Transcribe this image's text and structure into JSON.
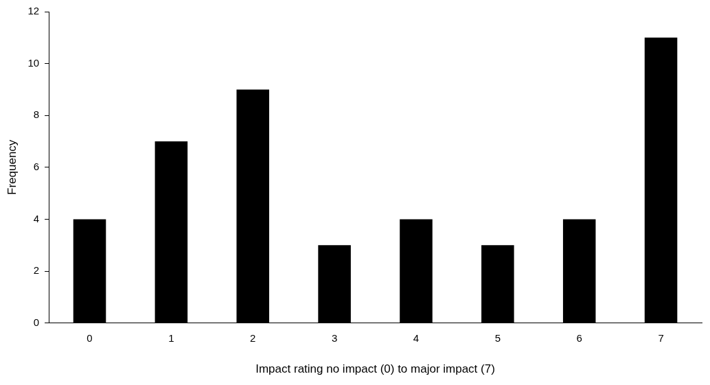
{
  "chart_data": {
    "type": "bar",
    "xlabel": "Impact rating no impact (0) to major impact (7)",
    "ylabel": "Frequency",
    "categories": [
      "0",
      "1",
      "2",
      "3",
      "4",
      "5",
      "6",
      "7"
    ],
    "values": [
      4,
      7,
      9,
      3,
      4,
      3,
      4,
      11
    ],
    "color": "#000000",
    "ylim": [
      0,
      12
    ],
    "yticks": [
      0,
      2,
      4,
      6,
      8,
      10,
      12
    ],
    "grid": false,
    "legend": false
  }
}
